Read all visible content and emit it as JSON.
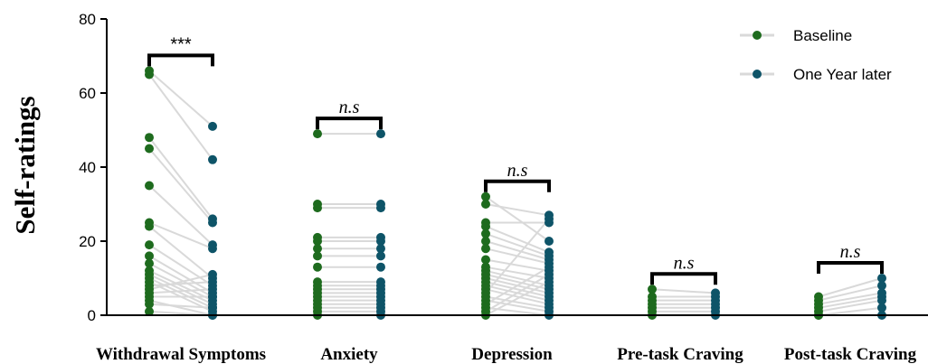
{
  "chart_data": {
    "type": "scatter",
    "ylabel": "Self-ratings",
    "ylim": [
      0,
      80
    ],
    "yticks": [
      0,
      20,
      40,
      60,
      80
    ],
    "grid": false,
    "legend_position": "top-right",
    "colors": {
      "baseline": "#1e6b1e",
      "one_year": "#0e5468",
      "line": "#d9d9d9",
      "axis": "#000000"
    },
    "series": [
      {
        "name": "Baseline"
      },
      {
        "name": "One Year later"
      }
    ],
    "categories": [
      {
        "label": "Withdrawal Symptoms",
        "significance": "***",
        "pairs": [
          [
            66,
            51
          ],
          [
            65,
            42
          ],
          [
            48,
            26
          ],
          [
            45,
            25
          ],
          [
            35,
            19
          ],
          [
            25,
            18
          ],
          [
            24,
            10
          ],
          [
            19,
            8
          ],
          [
            16,
            6
          ],
          [
            14,
            5
          ],
          [
            12,
            4
          ],
          [
            11,
            3
          ],
          [
            10,
            2
          ],
          [
            9,
            1
          ],
          [
            8,
            9
          ],
          [
            7,
            11
          ],
          [
            6,
            7
          ],
          [
            5,
            5
          ],
          [
            4,
            0
          ],
          [
            3,
            2
          ],
          [
            1,
            0
          ]
        ]
      },
      {
        "label": "Anxiety",
        "significance": "n.s",
        "pairs": [
          [
            49,
            49
          ],
          [
            30,
            30
          ],
          [
            29,
            29
          ],
          [
            21,
            21
          ],
          [
            20,
            20
          ],
          [
            18,
            18
          ],
          [
            16,
            16
          ],
          [
            13,
            13
          ],
          [
            9,
            9
          ],
          [
            8,
            8
          ],
          [
            7,
            7
          ],
          [
            6,
            6
          ],
          [
            5,
            5
          ],
          [
            4,
            4
          ],
          [
            3,
            3
          ],
          [
            2,
            2
          ],
          [
            1,
            1
          ],
          [
            0,
            0
          ]
        ]
      },
      {
        "label": "Depression",
        "significance": "n.s",
        "pairs": [
          [
            32,
            20
          ],
          [
            30,
            27
          ],
          [
            25,
            25
          ],
          [
            24,
            17
          ],
          [
            22,
            16
          ],
          [
            20,
            15
          ],
          [
            18,
            14
          ],
          [
            15,
            12
          ],
          [
            13,
            10
          ],
          [
            12,
            8
          ],
          [
            11,
            7
          ],
          [
            10,
            6
          ],
          [
            9,
            5
          ],
          [
            8,
            4
          ],
          [
            7,
            3
          ],
          [
            6,
            26
          ],
          [
            5,
            2
          ],
          [
            4,
            1
          ],
          [
            3,
            13
          ],
          [
            2,
            0
          ],
          [
            1,
            11
          ],
          [
            0,
            9
          ]
        ]
      },
      {
        "label": "Pre-task Craving",
        "significance": "n.s",
        "pairs": [
          [
            7,
            6
          ],
          [
            5,
            5
          ],
          [
            4,
            4
          ],
          [
            3,
            3
          ],
          [
            2,
            2
          ],
          [
            1,
            1
          ],
          [
            0,
            0
          ]
        ]
      },
      {
        "label": "Post-task Craving",
        "significance": "n.s",
        "pairs": [
          [
            5,
            10
          ],
          [
            4,
            8
          ],
          [
            3,
            6
          ],
          [
            2,
            5
          ],
          [
            1,
            4
          ],
          [
            0,
            2
          ],
          [
            0,
            0
          ]
        ]
      }
    ]
  }
}
